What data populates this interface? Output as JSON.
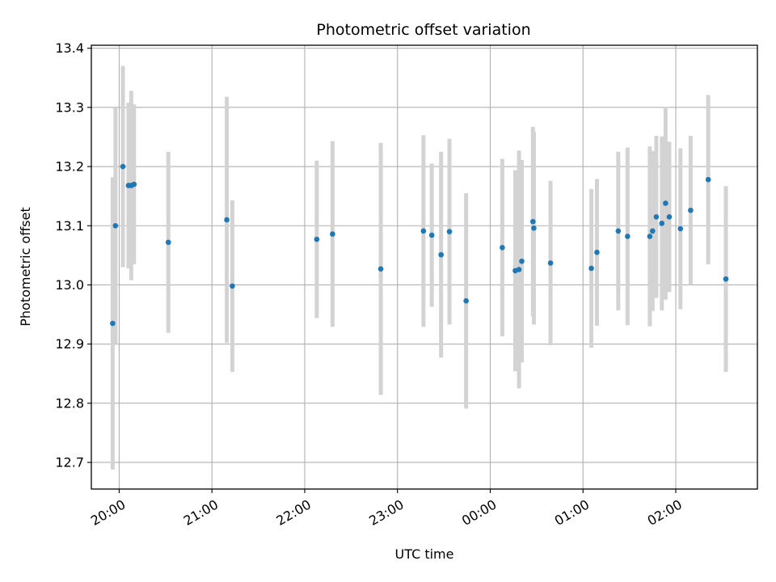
{
  "chart_data": {
    "type": "scatter",
    "title": "Photometric offset variation",
    "xlabel": "UTC time",
    "ylabel": "Photometric offset",
    "xlim": [
      19.7,
      26.88
    ],
    "ylim": [
      12.655,
      13.405
    ],
    "grid": true,
    "x_tick_labels": [
      {
        "value": 20,
        "label": "20:00"
      },
      {
        "value": 21,
        "label": "21:00"
      },
      {
        "value": 22,
        "label": "22:00"
      },
      {
        "value": 23,
        "label": "23:00"
      },
      {
        "value": 24,
        "label": "00:00"
      },
      {
        "value": 25,
        "label": "01:00"
      },
      {
        "value": 26,
        "label": "02:00"
      }
    ],
    "y_ticks": [
      12.7,
      12.8,
      12.9,
      13.0,
      13.1,
      13.2,
      13.3,
      13.4
    ],
    "y_tick_labels": [
      "12.7",
      "12.8",
      "12.9",
      "13.0",
      "13.1",
      "13.2",
      "13.3",
      "13.4"
    ],
    "colors": {
      "point": "#1f77b4",
      "errorbar": "#d3d3d3",
      "grid": "#b0b0b0"
    },
    "points": [
      {
        "x": 19.93,
        "y": 12.935,
        "yerr": 0.247
      },
      {
        "x": 19.96,
        "y": 13.1,
        "yerr": 0.2
      },
      {
        "x": 20.04,
        "y": 13.2,
        "yerr": 0.17
      },
      {
        "x": 20.1,
        "y": 13.168,
        "yerr": 0.14
      },
      {
        "x": 20.13,
        "y": 13.168,
        "yerr": 0.16
      },
      {
        "x": 20.16,
        "y": 13.17,
        "yerr": 0.135
      },
      {
        "x": 20.53,
        "y": 13.072,
        "yerr": 0.153
      },
      {
        "x": 21.16,
        "y": 13.11,
        "yerr": 0.208
      },
      {
        "x": 21.22,
        "y": 12.998,
        "yerr": 0.145
      },
      {
        "x": 22.13,
        "y": 13.077,
        "yerr": 0.133
      },
      {
        "x": 22.3,
        "y": 13.086,
        "yerr": 0.157
      },
      {
        "x": 22.82,
        "y": 13.027,
        "yerr": 0.213
      },
      {
        "x": 23.28,
        "y": 13.091,
        "yerr": 0.162
      },
      {
        "x": 23.37,
        "y": 13.084,
        "yerr": 0.121
      },
      {
        "x": 23.47,
        "y": 13.051,
        "yerr": 0.174
      },
      {
        "x": 23.56,
        "y": 13.09,
        "yerr": 0.157
      },
      {
        "x": 23.74,
        "y": 12.973,
        "yerr": 0.182
      },
      {
        "x": 24.13,
        "y": 13.063,
        "yerr": 0.15
      },
      {
        "x": 24.27,
        "y": 13.024,
        "yerr": 0.17
      },
      {
        "x": 24.31,
        "y": 13.026,
        "yerr": 0.201
      },
      {
        "x": 24.34,
        "y": 13.04,
        "yerr": 0.171
      },
      {
        "x": 24.46,
        "y": 13.107,
        "yerr": 0.16
      },
      {
        "x": 24.47,
        "y": 13.096,
        "yerr": 0.163
      },
      {
        "x": 24.65,
        "y": 13.037,
        "yerr": 0.139
      },
      {
        "x": 25.09,
        "y": 13.028,
        "yerr": 0.134
      },
      {
        "x": 25.15,
        "y": 13.055,
        "yerr": 0.124
      },
      {
        "x": 25.38,
        "y": 13.091,
        "yerr": 0.134
      },
      {
        "x": 25.48,
        "y": 13.082,
        "yerr": 0.15
      },
      {
        "x": 25.72,
        "y": 13.082,
        "yerr": 0.152
      },
      {
        "x": 25.75,
        "y": 13.091,
        "yerr": 0.135
      },
      {
        "x": 25.79,
        "y": 13.115,
        "yerr": 0.137
      },
      {
        "x": 25.85,
        "y": 13.104,
        "yerr": 0.147
      },
      {
        "x": 25.89,
        "y": 13.138,
        "yerr": 0.163
      },
      {
        "x": 25.93,
        "y": 13.115,
        "yerr": 0.127
      },
      {
        "x": 26.05,
        "y": 13.095,
        "yerr": 0.136
      },
      {
        "x": 26.16,
        "y": 13.126,
        "yerr": 0.126
      },
      {
        "x": 26.35,
        "y": 13.178,
        "yerr": 0.143
      },
      {
        "x": 26.54,
        "y": 13.01,
        "yerr": 0.157
      }
    ]
  }
}
